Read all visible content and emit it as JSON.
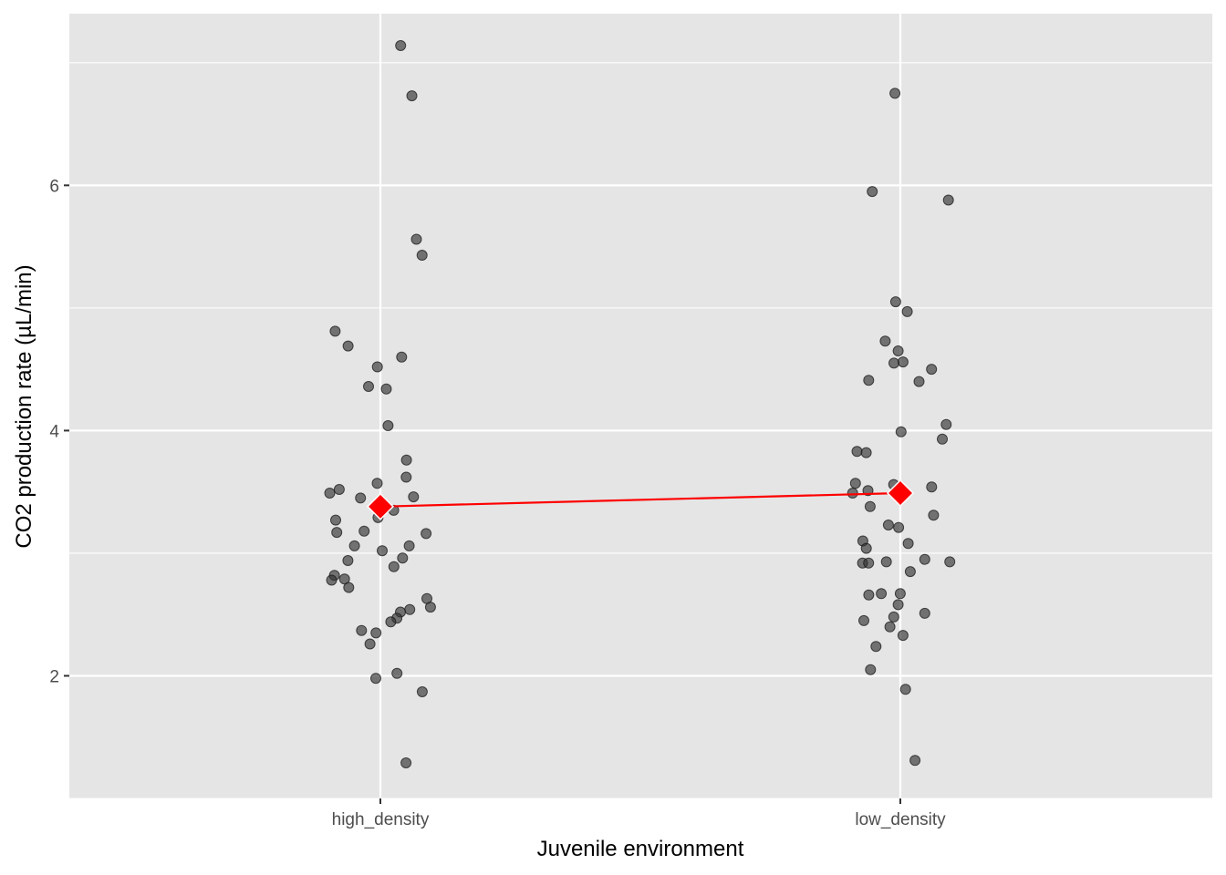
{
  "chart_data": {
    "type": "scatter",
    "xlabel": "Juvenile environment",
    "ylabel": "CO2 production rate (µL/min)",
    "categories": [
      "high_density",
      "low_density"
    ],
    "ylim": [
      1.0,
      7.4
    ],
    "yticks": [
      2,
      4,
      6
    ],
    "ytick_labels": [
      "2",
      "4",
      "6"
    ],
    "grid": true,
    "legend": "none",
    "colors": {
      "panel": "#e5e5e5",
      "grid": "#ffffff",
      "point": "#333333",
      "mean": "#ff0000"
    },
    "series": [
      {
        "category": "high_density",
        "values": [
          7.14,
          6.73,
          5.56,
          5.43,
          4.81,
          4.69,
          4.6,
          4.52,
          4.36,
          4.34,
          4.04,
          3.76,
          3.62,
          3.57,
          3.52,
          3.49,
          3.46,
          3.45,
          3.35,
          3.29,
          3.27,
          3.18,
          3.17,
          3.16,
          3.06,
          3.06,
          3.02,
          2.96,
          2.94,
          2.89,
          2.82,
          2.79,
          2.78,
          2.72,
          2.63,
          2.56,
          2.54,
          2.52,
          2.47,
          2.44,
          2.37,
          2.35,
          2.26,
          2.02,
          1.98,
          1.87,
          1.29
        ]
      },
      {
        "category": "low_density",
        "values": [
          6.75,
          5.95,
          5.88,
          5.05,
          4.97,
          4.73,
          4.65,
          4.56,
          4.55,
          4.5,
          4.41,
          4.4,
          4.05,
          3.99,
          3.93,
          3.83,
          3.82,
          3.57,
          3.56,
          3.54,
          3.51,
          3.49,
          3.38,
          3.31,
          3.23,
          3.21,
          3.1,
          3.08,
          3.04,
          2.95,
          2.93,
          2.93,
          2.92,
          2.92,
          2.85,
          2.67,
          2.67,
          2.66,
          2.58,
          2.51,
          2.48,
          2.45,
          2.4,
          2.33,
          2.24,
          2.05,
          1.89,
          1.31
        ]
      }
    ],
    "means": [
      {
        "category": "high_density",
        "value": 3.38
      },
      {
        "category": "low_density",
        "value": 3.49
      }
    ]
  }
}
